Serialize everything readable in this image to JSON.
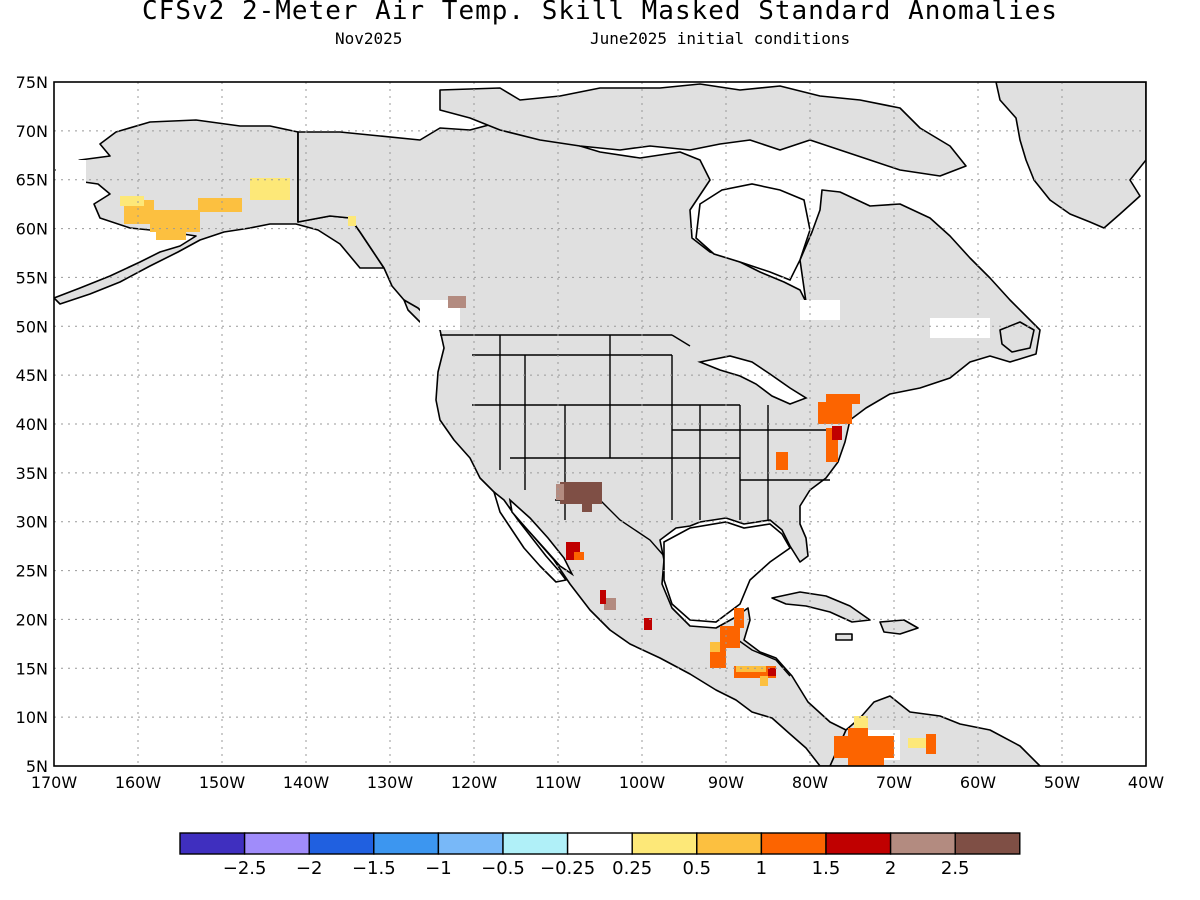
{
  "header": {
    "title": "CFSv2 2-Meter Air Temp. Skill Masked Standard Anomalies",
    "target_month": "Nov2025",
    "init_conditions": "June2025 initial conditions"
  },
  "map": {
    "lat_labels": [
      "75N",
      "70N",
      "65N",
      "60N",
      "55N",
      "50N",
      "45N",
      "40N",
      "35N",
      "30N",
      "25N",
      "20N",
      "15N",
      "10N",
      "5N"
    ],
    "lon_labels": [
      "170W",
      "160W",
      "150W",
      "140W",
      "130W",
      "120W",
      "110W",
      "100W",
      "90W",
      "80W",
      "70W",
      "60W",
      "50W",
      "40W"
    ],
    "lat_range": [
      5,
      75
    ],
    "lon_range": [
      -170,
      -40
    ],
    "grid": "dotted",
    "mask_color": "#e0e0e0",
    "land_outline_color": "#000000"
  },
  "anomaly_patches": [
    {
      "region": "southwest-alaska",
      "category": "0.5 to 1",
      "color": "#fcc040"
    },
    {
      "region": "south-alaska-coast",
      "category": "0.25 to 0.5",
      "color": "#fde878"
    },
    {
      "region": "southwest-yukon",
      "category": "0.25 to 0.5",
      "color": "#fde878"
    },
    {
      "region": "southern-british-columbia",
      "category": "2 to 2.5",
      "color": "#b38b80"
    },
    {
      "region": "southern-new-mexico",
      "category": "> 2.5",
      "color": "#7f4f45"
    },
    {
      "region": "sinaloa-mexico",
      "category": "1.5 to 2",
      "color": "#c00000"
    },
    {
      "region": "jalisco-mexico",
      "category": "2 to 2.5",
      "color": "#b38b80"
    },
    {
      "region": "central-mexico",
      "category": "1.5 to 2",
      "color": "#c00000"
    },
    {
      "region": "yucatan-guatemala",
      "category": "1 to 1.5",
      "color": "#fc6400"
    },
    {
      "region": "honduras",
      "category": "1 to 1.5",
      "color": "#fc6400"
    },
    {
      "region": "pennsylvania-new-york",
      "category": "1 to 1.5",
      "color": "#fc6400"
    },
    {
      "region": "mid-atlantic-coast",
      "category": "1 to 1.5",
      "color": "#fc6400"
    },
    {
      "region": "appalachians",
      "category": "1 to 1.5",
      "color": "#fc6400"
    },
    {
      "region": "colombia",
      "category": "1 to 1.5",
      "color": "#fc6400"
    },
    {
      "region": "venezuela",
      "category": "0.25 to 0.5",
      "color": "#fde878"
    }
  ],
  "colorbar": {
    "colors": [
      "#3f2fbf",
      "#a08cfa",
      "#2060e0",
      "#3c96f0",
      "#78b8f8",
      "#b0f0f8",
      "#ffffff",
      "#fde878",
      "#fcc040",
      "#fc6400",
      "#c00000",
      "#b38b80",
      "#7f4f45"
    ],
    "labels": [
      "-2.5",
      "-2",
      "-1.5",
      "-1",
      "-0.5",
      "-0.25",
      "0.25",
      "0.5",
      "1",
      "1.5",
      "2",
      "2.5"
    ]
  }
}
